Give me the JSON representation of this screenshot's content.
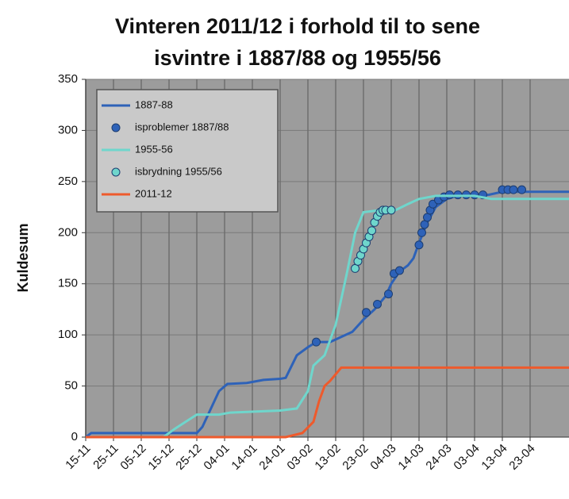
{
  "chart_data": {
    "type": "line",
    "title": [
      "Vinteren 2011/12 i forhold til to sene",
      "isvintre i 1887/88 og 1955/56"
    ],
    "ylabel": "Kuldesum",
    "xlim": [
      0,
      174
    ],
    "ylim": [
      0,
      350
    ],
    "yticks": [
      0,
      50,
      100,
      150,
      200,
      250,
      300,
      350
    ],
    "xticks": [
      {
        "value": 0,
        "label": "15-11"
      },
      {
        "value": 10,
        "label": "25-11"
      },
      {
        "value": 20,
        "label": "05-12"
      },
      {
        "value": 30,
        "label": "15-12"
      },
      {
        "value": 40,
        "label": "25-12"
      },
      {
        "value": 50,
        "label": "04-01"
      },
      {
        "value": 60,
        "label": "14-01"
      },
      {
        "value": 70,
        "label": "24-01"
      },
      {
        "value": 80,
        "label": "03-02"
      },
      {
        "value": 90,
        "label": "13-02"
      },
      {
        "value": 100,
        "label": "23-02"
      },
      {
        "value": 110,
        "label": "04-03"
      },
      {
        "value": 120,
        "label": "14-03"
      },
      {
        "value": 130,
        "label": "24-03"
      },
      {
        "value": 140,
        "label": "03-04"
      },
      {
        "value": 150,
        "label": "13-04"
      },
      {
        "value": 160,
        "label": "23-04"
      }
    ],
    "grid": true,
    "legend": "upper left",
    "series": [
      {
        "name": "1887-88",
        "color": "#2e62b8",
        "style": "line",
        "x": [
          0,
          2,
          40,
          42,
          48,
          51,
          58,
          64,
          70,
          72,
          76,
          80,
          83,
          88,
          96,
          100,
          104,
          108,
          110,
          113,
          116,
          118,
          120,
          123,
          126,
          130,
          135,
          145,
          150,
          174
        ],
        "values": [
          0,
          4,
          4,
          10,
          45,
          52,
          53,
          56,
          57,
          58,
          80,
          88,
          93,
          93,
          103,
          115,
          125,
          138,
          150,
          162,
          168,
          175,
          190,
          210,
          225,
          233,
          237,
          237,
          240,
          240
        ]
      },
      {
        "name": "isproblemer 1887/88",
        "color": "#2e62b8",
        "style": "markers",
        "x": [
          83,
          101,
          105,
          109,
          111,
          113,
          120,
          121,
          122,
          123,
          124,
          125,
          127,
          129,
          131,
          134,
          137,
          140,
          143,
          150,
          152,
          154,
          157
        ],
        "values": [
          93,
          122,
          130,
          140,
          160,
          163,
          188,
          200,
          208,
          215,
          222,
          228,
          232,
          235,
          237,
          237,
          237,
          237,
          237,
          242,
          242,
          242,
          242
        ]
      },
      {
        "name": "1955-56",
        "color": "#6fd6cc",
        "style": "line",
        "x": [
          0,
          28,
          32,
          36,
          40,
          48,
          52,
          70,
          76,
          80,
          82,
          86,
          90,
          94,
          97,
          100,
          106,
          110,
          116,
          120,
          126,
          140,
          146,
          174
        ],
        "values": [
          0,
          0,
          8,
          15,
          22,
          22,
          24,
          26,
          28,
          45,
          70,
          80,
          110,
          160,
          200,
          220,
          222,
          220,
          228,
          233,
          236,
          236,
          233,
          233
        ]
      },
      {
        "name": "isbrydning 1955/56",
        "color": "#6fd6cc",
        "style": "markers",
        "x": [
          97,
          98,
          99,
          100,
          101,
          102,
          103,
          104,
          105,
          106,
          107,
          108,
          110
        ],
        "values": [
          165,
          172,
          178,
          184,
          190,
          196,
          202,
          210,
          216,
          220,
          222,
          222,
          222
        ]
      },
      {
        "name": "2011-12",
        "color": "#ee5a2c",
        "style": "line",
        "x": [
          0,
          72,
          78,
          82,
          84,
          86,
          88,
          92,
          174
        ],
        "values": [
          0,
          0,
          4,
          15,
          35,
          50,
          55,
          68,
          68
        ]
      }
    ]
  }
}
